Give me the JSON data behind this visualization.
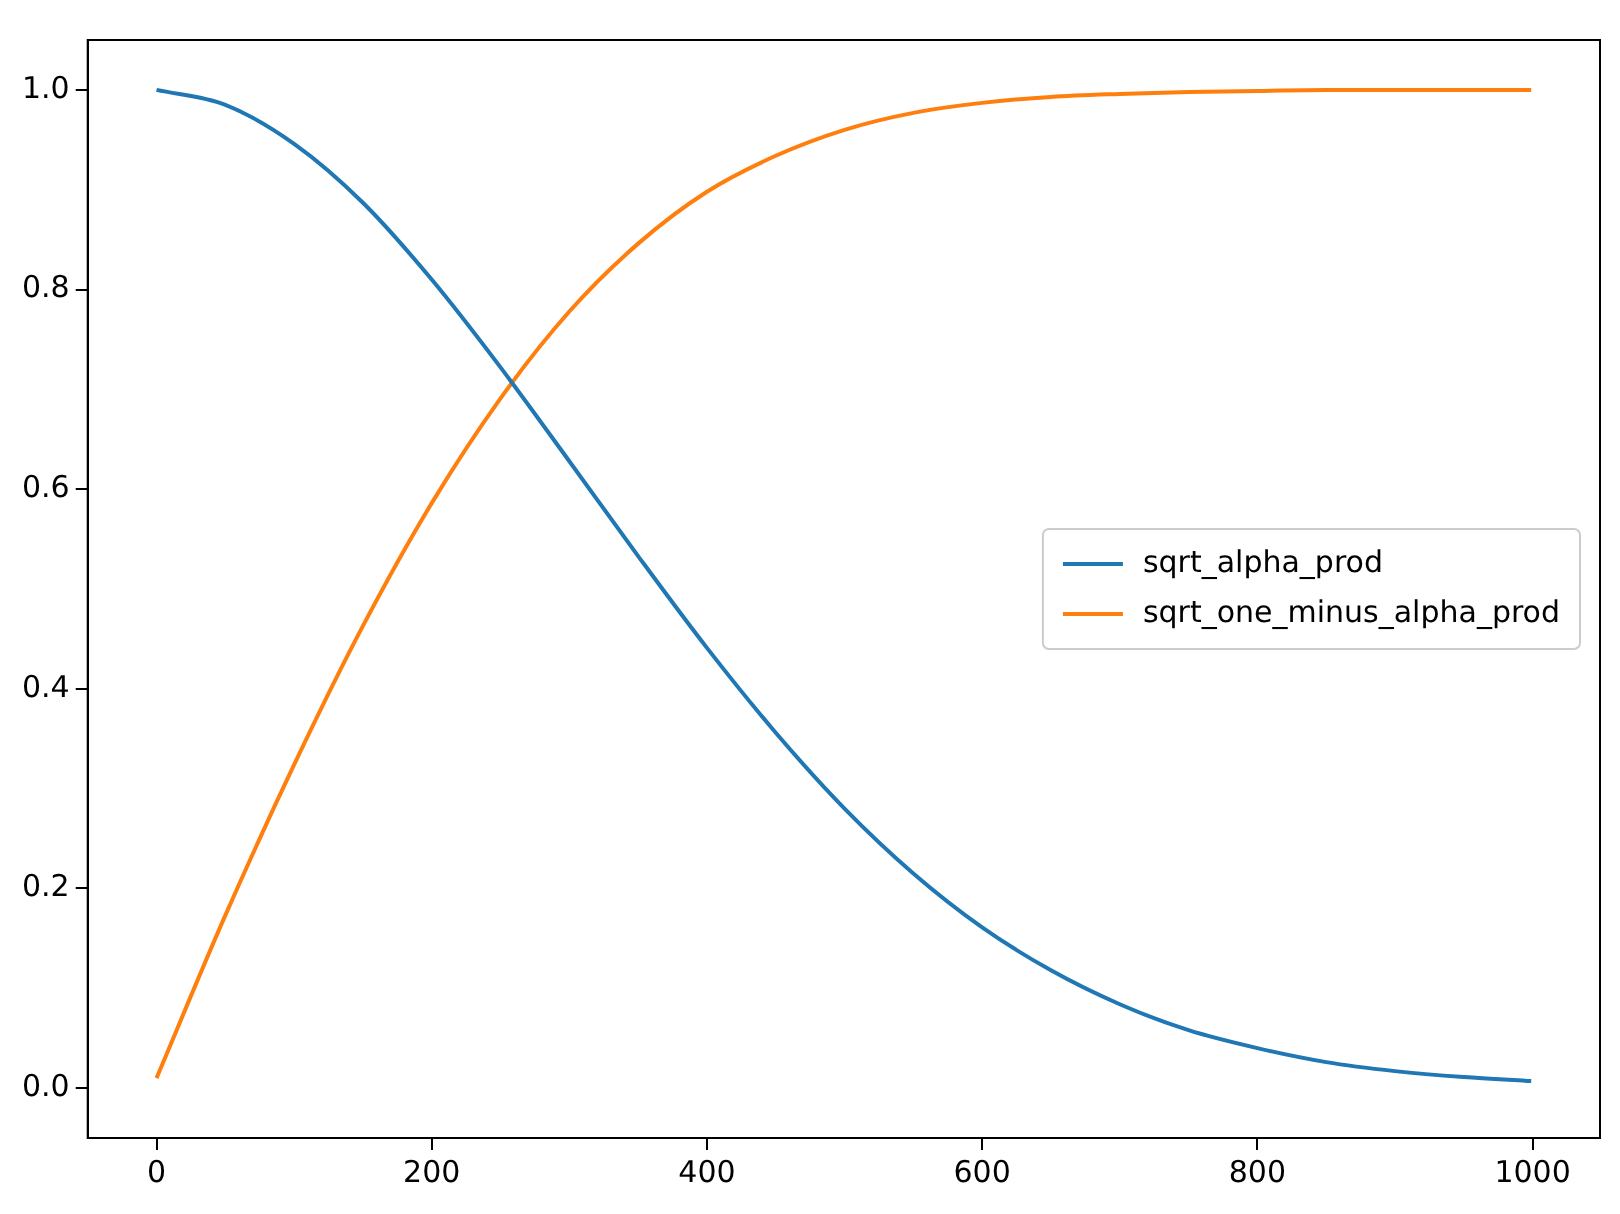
{
  "chart_data": {
    "type": "line",
    "x": [
      0,
      50,
      100,
      150,
      200,
      250,
      300,
      350,
      400,
      450,
      500,
      550,
      600,
      650,
      700,
      750,
      800,
      850,
      900,
      950,
      999
    ],
    "series": [
      {
        "name": "sqrt_alpha_prod",
        "color": "#1f77b4",
        "values": [
          1.0,
          0.985,
          0.946,
          0.887,
          0.81,
          0.722,
          0.628,
          0.533,
          0.441,
          0.356,
          0.28,
          0.215,
          0.161,
          0.118,
          0.084,
          0.058,
          0.04,
          0.026,
          0.017,
          0.011,
          0.007
        ]
      },
      {
        "name": "sqrt_one_minus_alpha_prod",
        "color": "#ff7f0e",
        "values": [
          0.01,
          0.173,
          0.324,
          0.463,
          0.586,
          0.691,
          0.778,
          0.846,
          0.898,
          0.934,
          0.96,
          0.977,
          0.987,
          0.993,
          0.996,
          0.998,
          0.999,
          1.0,
          1.0,
          1.0,
          1.0
        ]
      }
    ],
    "xlim": [
      -50,
      1049
    ],
    "xticks": [
      0,
      200,
      400,
      600,
      800,
      1000
    ],
    "ylim": [
      -0.05,
      1.05
    ],
    "yticks": [
      {
        "value": 0,
        "label": "0.0"
      },
      {
        "value": 0.2,
        "label": "0.2"
      },
      {
        "value": 0.4,
        "label": "0.4"
      },
      {
        "value": 0.6,
        "label": "0.6"
      },
      {
        "value": 0.8,
        "label": "0.8"
      },
      {
        "value": 1,
        "label": "1.0"
      }
    ],
    "grid": false,
    "legend": "right",
    "marker": "none",
    "line_style": "solid"
  }
}
